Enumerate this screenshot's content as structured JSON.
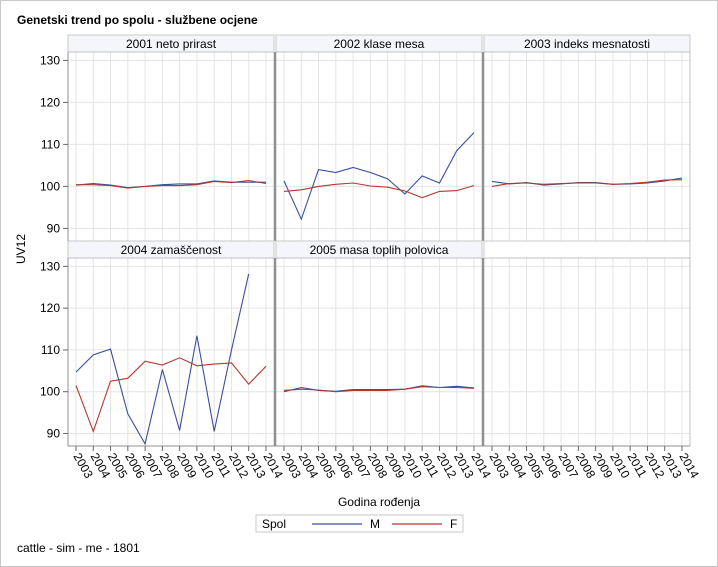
{
  "title": "Genetski trend po spolu - službene ocjene",
  "footnote": "cattle - sim - me - 1801",
  "colors": {
    "M": "#3b4f9c",
    "F": "#b2382e",
    "grid": "#e4e4e4",
    "strip": "#f4f6fc",
    "frame": "#909090"
  },
  "chart_data": {
    "type": "line",
    "xlabel": "Godina rođenja",
    "ylabel": "UV12",
    "x": [
      "2003",
      "2004",
      "2005",
      "2006",
      "2007",
      "2008",
      "2009",
      "2010",
      "2011",
      "2012",
      "2013",
      "2014"
    ],
    "ylim": [
      87,
      132
    ],
    "yticks": [
      90,
      100,
      110,
      120,
      130
    ],
    "legend": {
      "title": "Spol",
      "entries": [
        "M",
        "F"
      ],
      "placement": "bottom"
    },
    "panels": [
      {
        "title": "2001 neto prirast",
        "series": [
          {
            "name": "M",
            "values": [
              100.3,
              100.7,
              100.3,
              99.7,
              100.0,
              100.4,
              100.6,
              100.6,
              101.3,
              101.0,
              101.0,
              101.0
            ]
          },
          {
            "name": "F",
            "values": [
              100.4,
              100.4,
              100.2,
              99.6,
              100.0,
              100.2,
              100.2,
              100.4,
              101.2,
              100.9,
              101.4,
              100.7
            ]
          }
        ]
      },
      {
        "title": "2002 klase mesa",
        "series": [
          {
            "name": "M",
            "values": [
              101.3,
              92.2,
              104.0,
              103.3,
              104.5,
              103.3,
              101.8,
              98.2,
              102.5,
              100.8,
              108.5,
              112.8
            ]
          },
          {
            "name": "F",
            "values": [
              98.8,
              99.2,
              100.0,
              100.5,
              100.8,
              100.1,
              99.8,
              98.9,
              97.3,
              98.8,
              99.0,
              100.2
            ]
          }
        ]
      },
      {
        "title": "2003 indeks mesnatosti",
        "series": [
          {
            "name": "M",
            "values": [
              101.2,
              100.6,
              100.9,
              100.3,
              100.6,
              100.9,
              100.9,
              100.5,
              100.6,
              100.8,
              101.3,
              102.0
            ]
          },
          {
            "name": "F",
            "values": [
              100.0,
              100.7,
              100.8,
              100.5,
              100.7,
              100.8,
              100.8,
              100.5,
              100.7,
              101.0,
              101.5,
              101.6
            ]
          }
        ]
      },
      {
        "title": "2004 zamaščenost",
        "series": [
          {
            "name": "M",
            "values": [
              104.7,
              108.8,
              110.2,
              94.7,
              87.5,
              105.3,
              90.7,
              113.4,
              90.5,
              110.0,
              128.2,
              null
            ]
          },
          {
            "name": "F",
            "values": [
              101.5,
              90.5,
              102.5,
              103.2,
              107.3,
              106.4,
              108.1,
              106.2,
              106.6,
              106.9,
              101.8,
              106.1
            ]
          }
        ]
      },
      {
        "title": "2005 masa toplih polovica",
        "series": [
          {
            "name": "M",
            "values": [
              100.0,
              101.0,
              100.3,
              100.1,
              100.5,
              100.5,
              100.5,
              100.6,
              101.4,
              101.0,
              101.3,
              100.9
            ]
          },
          {
            "name": "F",
            "values": [
              100.3,
              100.6,
              100.4,
              100.0,
              100.3,
              100.3,
              100.3,
              100.6,
              101.2,
              101.0,
              101.0,
              100.8
            ]
          }
        ]
      }
    ]
  }
}
